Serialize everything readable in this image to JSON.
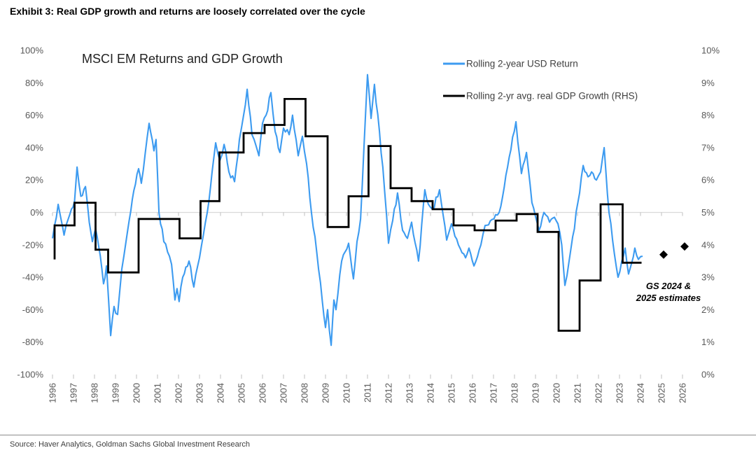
{
  "page": {
    "exhibit_title": "Exhibit 3: Real GDP growth and returns are loosely correlated over the cycle",
    "source": "Source: Haver Analytics, Goldman Sachs Global Investment Research"
  },
  "chart_data": {
    "type": "line",
    "title": "MSCI EM Returns and GDP Growth",
    "legend": [
      {
        "label": "Rolling 2-year USD Return",
        "color": "#3D9BF0"
      },
      {
        "label": "Rolling 2-yr avg. real GDP Growth (RHS)",
        "color": "#000000"
      }
    ],
    "left_axis": {
      "min": -100,
      "max": 100,
      "unit": "%",
      "tick_labels": [
        "100%",
        "80%",
        "60%",
        "40%",
        "20%",
        "0%",
        "-20%",
        "-40%",
        "-60%",
        "-80%",
        "-100%"
      ],
      "tick_values": [
        100,
        80,
        60,
        40,
        20,
        0,
        -20,
        -40,
        -60,
        -80,
        -100
      ]
    },
    "right_axis": {
      "min": 0,
      "max": 10,
      "unit": "%",
      "tick_labels": [
        "10%",
        "9%",
        "8%",
        "7%",
        "6%",
        "5%",
        "4%",
        "3%",
        "2%",
        "1%",
        "0%"
      ],
      "tick_values": [
        10,
        9,
        8,
        7,
        6,
        5,
        4,
        3,
        2,
        1,
        0
      ]
    },
    "x_axis": {
      "min": 1996,
      "max": 2026,
      "labels": [
        "1996",
        "1997",
        "1998",
        "1999",
        "2000",
        "2001",
        "2002",
        "2003",
        "2004",
        "2005",
        "2006",
        "2007",
        "2008",
        "2009",
        "2010",
        "2011",
        "2012",
        "2013",
        "2014",
        "2015",
        "2016",
        "2017",
        "2018",
        "2019",
        "2020",
        "2021",
        "2022",
        "2023",
        "2024",
        "2025",
        "2026"
      ]
    },
    "gridline_value_left": 0,
    "series": [
      {
        "name": "Rolling 2-year USD Return",
        "axis": "left",
        "style": "line",
        "color": "#3D9BF0",
        "points": [
          [
            1996.0,
            -16
          ],
          [
            1996.1,
            -8
          ],
          [
            1996.27,
            5
          ],
          [
            1996.42,
            -5
          ],
          [
            1996.55,
            -14
          ],
          [
            1996.75,
            -4
          ],
          [
            1996.9,
            2
          ],
          [
            1997.05,
            7
          ],
          [
            1997.17,
            28
          ],
          [
            1997.35,
            10
          ],
          [
            1997.57,
            16
          ],
          [
            1997.75,
            -6
          ],
          [
            1997.9,
            -18
          ],
          [
            1998.05,
            -10
          ],
          [
            1998.2,
            -21
          ],
          [
            1998.43,
            -44
          ],
          [
            1998.57,
            -33
          ],
          [
            1998.77,
            -76
          ],
          [
            1998.93,
            -58
          ],
          [
            1999.1,
            -63
          ],
          [
            1999.3,
            -35
          ],
          [
            1999.5,
            -18
          ],
          [
            1999.65,
            -5
          ],
          [
            1999.8,
            8
          ],
          [
            2000.1,
            27
          ],
          [
            2000.23,
            18
          ],
          [
            2000.6,
            55
          ],
          [
            2000.83,
            38
          ],
          [
            2000.93,
            45
          ],
          [
            2001.07,
            0
          ],
          [
            2001.3,
            -18
          ],
          [
            2001.57,
            -27
          ],
          [
            2001.67,
            -32
          ],
          [
            2001.83,
            -54
          ],
          [
            2001.93,
            -47
          ],
          [
            2002.03,
            -55
          ],
          [
            2002.2,
            -40
          ],
          [
            2002.5,
            -30
          ],
          [
            2002.73,
            -46
          ],
          [
            2003.0,
            -28
          ],
          [
            2003.37,
            0
          ],
          [
            2003.6,
            25
          ],
          [
            2003.77,
            43
          ],
          [
            2003.97,
            32
          ],
          [
            2004.17,
            42
          ],
          [
            2004.4,
            25
          ],
          [
            2004.67,
            19
          ],
          [
            2004.9,
            45
          ],
          [
            2005.1,
            60
          ],
          [
            2005.27,
            76
          ],
          [
            2005.5,
            48
          ],
          [
            2005.6,
            45
          ],
          [
            2005.83,
            35
          ],
          [
            2006.0,
            55
          ],
          [
            2006.17,
            60
          ],
          [
            2006.4,
            74
          ],
          [
            2006.6,
            50
          ],
          [
            2006.83,
            37
          ],
          [
            2007.0,
            52
          ],
          [
            2007.27,
            48
          ],
          [
            2007.43,
            60
          ],
          [
            2007.6,
            45
          ],
          [
            2007.7,
            35
          ],
          [
            2007.9,
            47
          ],
          [
            2008.1,
            30
          ],
          [
            2008.33,
            0
          ],
          [
            2008.5,
            -15
          ],
          [
            2008.67,
            -35
          ],
          [
            2008.85,
            -55
          ],
          [
            2009.0,
            -71
          ],
          [
            2009.1,
            -60
          ],
          [
            2009.27,
            -82
          ],
          [
            2009.4,
            -54
          ],
          [
            2009.5,
            -60
          ],
          [
            2009.77,
            -30
          ],
          [
            2010.1,
            -19
          ],
          [
            2010.33,
            -41
          ],
          [
            2010.5,
            -18
          ],
          [
            2010.67,
            -4
          ],
          [
            2011.0,
            85
          ],
          [
            2011.17,
            58
          ],
          [
            2011.33,
            79
          ],
          [
            2011.73,
            28
          ],
          [
            2012.0,
            -19
          ],
          [
            2012.2,
            -5
          ],
          [
            2012.43,
            12
          ],
          [
            2012.67,
            -11
          ],
          [
            2012.9,
            -16
          ],
          [
            2013.1,
            -6
          ],
          [
            2013.43,
            -30
          ],
          [
            2013.73,
            14
          ],
          [
            2013.9,
            5
          ],
          [
            2014.1,
            2
          ],
          [
            2014.43,
            14
          ],
          [
            2014.77,
            -17
          ],
          [
            2015.0,
            -7
          ],
          [
            2015.33,
            -20
          ],
          [
            2015.67,
            -28
          ],
          [
            2015.83,
            -22
          ],
          [
            2016.07,
            -33
          ],
          [
            2016.4,
            -20
          ],
          [
            2016.6,
            -8
          ],
          [
            2017.27,
            0
          ],
          [
            2017.67,
            28
          ],
          [
            2018.07,
            56
          ],
          [
            2018.33,
            24
          ],
          [
            2018.57,
            37
          ],
          [
            2018.83,
            6
          ],
          [
            2019.17,
            -11
          ],
          [
            2019.4,
            0
          ],
          [
            2019.67,
            -6
          ],
          [
            2019.9,
            -3
          ],
          [
            2020.07,
            -7
          ],
          [
            2020.25,
            -20
          ],
          [
            2020.4,
            -45
          ],
          [
            2020.6,
            -30
          ],
          [
            2020.77,
            -15
          ],
          [
            2021.1,
            12
          ],
          [
            2021.27,
            29
          ],
          [
            2021.5,
            22
          ],
          [
            2021.67,
            25
          ],
          [
            2021.9,
            20
          ],
          [
            2022.1,
            25
          ],
          [
            2022.27,
            40
          ],
          [
            2022.5,
            0
          ],
          [
            2022.93,
            -40
          ],
          [
            2023.27,
            -22
          ],
          [
            2023.43,
            -38
          ],
          [
            2023.73,
            -22
          ],
          [
            2023.9,
            -29
          ],
          [
            2024.1,
            -27
          ]
        ]
      },
      {
        "name": "Rolling 2-yr avg. real GDP Growth (RHS)",
        "axis": "right",
        "style": "step",
        "color": "#000000",
        "start": [
          1996.1,
          3.55
        ],
        "segments": [
          [
            1996.1,
            1997.05,
            4.6
          ],
          [
            1997.05,
            1998.05,
            5.3
          ],
          [
            1998.05,
            1998.65,
            3.85
          ],
          [
            1998.65,
            2000.1,
            3.15
          ],
          [
            2000.1,
            2002.05,
            4.8
          ],
          [
            2002.05,
            2003.05,
            4.2
          ],
          [
            2003.05,
            2003.95,
            5.35
          ],
          [
            2003.95,
            2005.1,
            6.85
          ],
          [
            2005.1,
            2006.1,
            7.45
          ],
          [
            2006.1,
            2007.05,
            7.7
          ],
          [
            2007.05,
            2008.05,
            8.5
          ],
          [
            2008.05,
            2009.1,
            7.35
          ],
          [
            2009.1,
            2010.1,
            4.55
          ],
          [
            2010.1,
            2011.05,
            5.5
          ],
          [
            2011.05,
            2012.1,
            7.05
          ],
          [
            2012.1,
            2013.1,
            5.75
          ],
          [
            2013.1,
            2014.1,
            5.35
          ],
          [
            2014.1,
            2015.1,
            5.1
          ],
          [
            2015.1,
            2016.1,
            4.6
          ],
          [
            2016.1,
            2017.1,
            4.45
          ],
          [
            2017.1,
            2018.1,
            4.75
          ],
          [
            2018.1,
            2019.1,
            4.95
          ],
          [
            2019.1,
            2020.1,
            4.4
          ],
          [
            2020.1,
            2021.1,
            1.35
          ],
          [
            2021.1,
            2022.1,
            2.9
          ],
          [
            2022.1,
            2023.15,
            5.25
          ],
          [
            2023.15,
            2024.05,
            3.45
          ]
        ]
      },
      {
        "name": "GS estimates",
        "axis": "right",
        "style": "diamond",
        "color": "#000000",
        "points": [
          [
            2025.1,
            3.7
          ],
          [
            2026.1,
            3.95
          ]
        ]
      }
    ],
    "annotation": {
      "lines": [
        "GS 2024 &",
        "2025 estimates"
      ]
    }
  }
}
